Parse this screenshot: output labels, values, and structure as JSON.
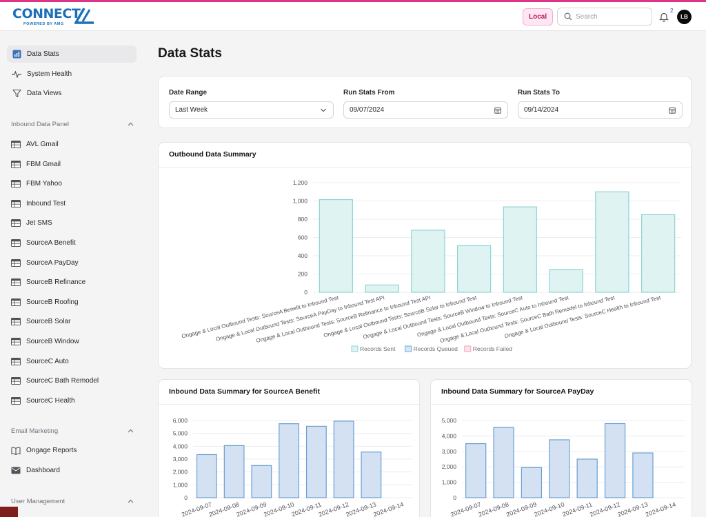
{
  "app": {
    "logo_text": "CONNECT",
    "logo_subtext": "POWERED BY AMG"
  },
  "header": {
    "env_badge": "Local",
    "search_placeholder": "Search",
    "notification_count": "2",
    "avatar_initials": "LB",
    "colors": {
      "accent": "#e0338a",
      "brand": "#1d6fb8"
    }
  },
  "sidebar": {
    "top_items": [
      {
        "label": "Data Stats",
        "icon": "bar-chart-icon",
        "active": true
      },
      {
        "label": "System Health",
        "icon": "pulse-icon"
      },
      {
        "label": "Data Views",
        "icon": "filter-icon"
      }
    ],
    "sections": [
      {
        "title": "Inbound Data Panel",
        "items": [
          {
            "label": "AVL Gmail"
          },
          {
            "label": "FBM Gmail"
          },
          {
            "label": "FBM Yahoo"
          },
          {
            "label": "Inbound Test"
          },
          {
            "label": "Jet SMS"
          },
          {
            "label": "SourceA Benefit"
          },
          {
            "label": "SourceA PayDay"
          },
          {
            "label": "SourceB Refinance"
          },
          {
            "label": "SourceB Roofing"
          },
          {
            "label": "SourceB Solar"
          },
          {
            "label": "SourceB Window"
          },
          {
            "label": "SourceC Auto"
          },
          {
            "label": "SourceC Bath Remodel"
          },
          {
            "label": "SourceC Health"
          }
        ]
      },
      {
        "title": "Email Marketing",
        "items": [
          {
            "label": "Ongage Reports",
            "icon": "book-icon"
          },
          {
            "label": "Dashboard",
            "icon": "mail-icon"
          }
        ]
      },
      {
        "title": "User Management",
        "items": []
      }
    ]
  },
  "main": {
    "title": "Data Stats",
    "filters": {
      "date_range": {
        "label": "Date Range",
        "value": "Last Week"
      },
      "from": {
        "label": "Run Stats From",
        "value": "09/07/2024"
      },
      "to": {
        "label": "Run Stats To",
        "value": "09/14/2024"
      }
    },
    "outbound_title": "Outbound Data Summary",
    "inbound_a_title": "Inbound Data Summary for SourceA Benefit",
    "inbound_b_title": "Inbound Data Summary for SourceA PayDay"
  },
  "chart_data": [
    {
      "type": "bar",
      "title": "Outbound Data Summary",
      "categories": [
        "Ongage & Local Outbound Tests: SourceA Benefit to Inbound Test",
        "Ongage & Local Outbound Tests: SourceA PayDay to Inbound Test API",
        "Ongage & Local Outbound Tests: SourceB Refinance to Inbound Test API",
        "Ongage & Local Outbound Tests: SourceB Solar to Inbound Test",
        "Ongage & Local Outbound Tests: SourceB Window to Inbound Test",
        "Ongage & Local Outbound Tests: SourceC Auto to Inbound Test",
        "Ongage & Local Outbound Tests: SourceC Bath Remodel to Inbound Test",
        "Ongage & Local Outbound Tests: SourceC Health to Inbound Test"
      ],
      "series": [
        {
          "name": "Records Sent",
          "values": [
            1015,
            80,
            680,
            510,
            935,
            250,
            1100,
            850
          ],
          "color": "#dff3f3",
          "stroke": "#8fd3d3"
        },
        {
          "name": "Records Queued",
          "values": [
            0,
            0,
            0,
            0,
            0,
            0,
            0,
            0
          ],
          "color": "#d6e6f5",
          "stroke": "#6fa7d6"
        },
        {
          "name": "Records Failed",
          "values": [
            0,
            0,
            0,
            0,
            0,
            0,
            0,
            0
          ],
          "color": "#fde4ea",
          "stroke": "#f2a3b5"
        }
      ],
      "yticks": [
        "0",
        "200",
        "400",
        "600",
        "800",
        "1,000",
        "1,200"
      ],
      "ylim": [
        0,
        1200
      ],
      "legend": "bottom",
      "grid": true
    },
    {
      "type": "bar",
      "title": "Inbound Data Summary for SourceA Benefit",
      "categories": [
        "2024-09-07",
        "2024-09-08",
        "2024-09-09",
        "2024-09-10",
        "2024-09-11",
        "2024-09-12",
        "2024-09-13",
        "2024-09-14"
      ],
      "values": [
        3350,
        4050,
        2500,
        5750,
        5550,
        5950,
        3550,
        0
      ],
      "yticks": [
        "0",
        "1,000",
        "2,000",
        "3,000",
        "4,000",
        "5,000",
        "6,000"
      ],
      "ylim": [
        0,
        6000
      ],
      "color": "#d4e1f2",
      "stroke": "#6a9fd1",
      "grid": true
    },
    {
      "type": "bar",
      "title": "Inbound Data Summary for SourceA PayDay",
      "categories": [
        "2024-09-07",
        "2024-09-08",
        "2024-09-09",
        "2024-09-10",
        "2024-09-11",
        "2024-09-12",
        "2024-09-13",
        "2024-09-14"
      ],
      "values": [
        3500,
        4550,
        1950,
        3750,
        2500,
        4800,
        2900,
        0
      ],
      "yticks": [
        "0",
        "1,000",
        "2,000",
        "3,000",
        "4,000",
        "5,000"
      ],
      "ylim": [
        0,
        5000
      ],
      "color": "#d4e1f2",
      "stroke": "#6a9fd1",
      "grid": true
    }
  ]
}
